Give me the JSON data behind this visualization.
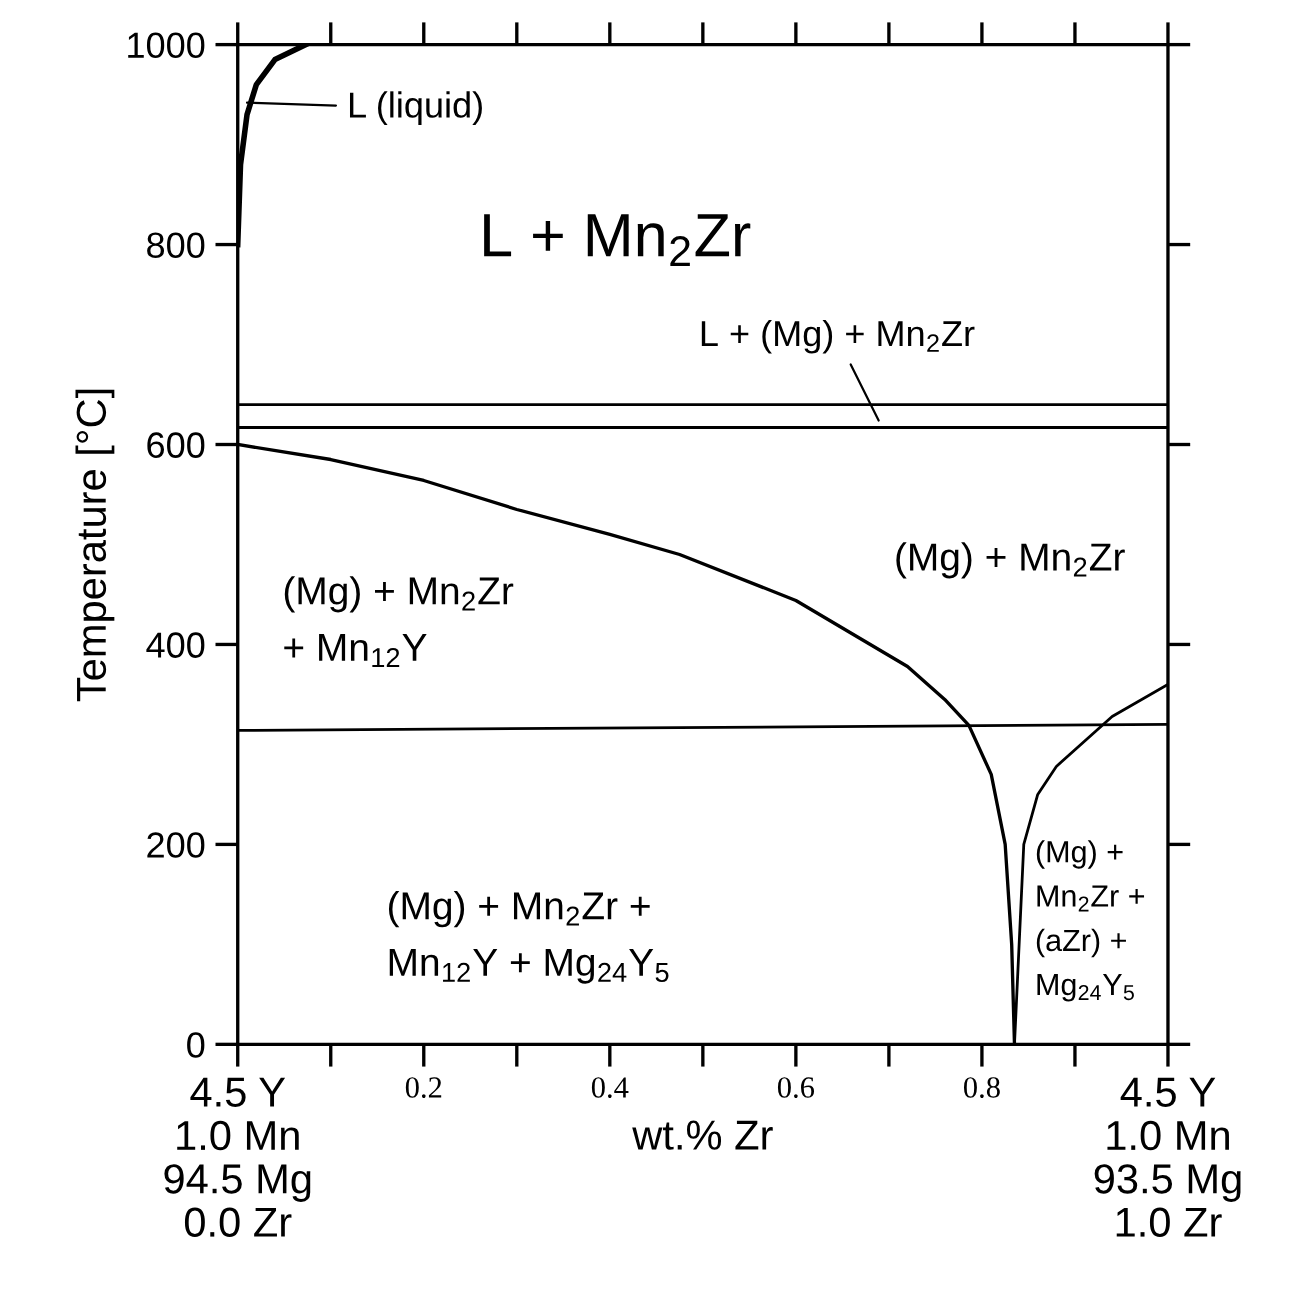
{
  "chart_data": {
    "type": "line",
    "xlabel": "wt.% Zr",
    "ylabel": "Temperature [°C]",
    "xlim": [
      0,
      1
    ],
    "ylim": [
      0,
      1000
    ],
    "xticks": [
      {
        "value": 0,
        "label": "4.5 Y\n1.0 Mn\n94.5 Mg\n0.0 Zr"
      },
      {
        "value": 0.1,
        "label": null
      },
      0.2,
      {
        "value": 0.3,
        "label": null
      },
      0.4,
      {
        "value": 0.5,
        "label": null
      },
      0.6,
      {
        "value": 0.7,
        "label": null
      },
      0.8,
      {
        "value": 0.9,
        "label": null
      },
      {
        "value": 1,
        "label": "4.5 Y\n1.0 Mn\n93.5 Mg\n1.0 Zr"
      }
    ],
    "yticks": [
      0,
      200,
      400,
      600,
      800,
      1000
    ],
    "grid": false,
    "legend": false,
    "marker": "none",
    "line_style": "solid",
    "series": [
      {
        "color": "#000000",
        "x": [
          0,
          0.003,
          0.01,
          0.02,
          0.04,
          0.073
        ],
        "values": [
          800,
          880,
          930,
          960,
          985,
          1000
        ]
      },
      {
        "color": "#000000",
        "x": [
          0,
          1
        ],
        "values": [
          640,
          640
        ]
      },
      {
        "color": "#000000",
        "x": [
          0,
          1
        ],
        "values": [
          617,
          617
        ]
      },
      {
        "color": "#000000",
        "x": [
          0,
          0.1,
          0.2,
          0.3,
          0.4,
          0.475,
          0.6,
          0.72,
          0.76,
          0.786,
          0.81,
          0.825,
          0.832,
          0.835
        ],
        "values": [
          600,
          585,
          564,
          535,
          510,
          490,
          444,
          378,
          345,
          319,
          270,
          200,
          100,
          0
        ]
      },
      {
        "color": "#000000",
        "x": [
          0,
          1
        ],
        "values": [
          314,
          320
        ]
      },
      {
        "color": "#000000",
        "x": [
          0.835,
          0.84,
          0.845,
          0.86,
          0.88,
          0.94,
          1
        ],
        "values": [
          0,
          100,
          200,
          250,
          278,
          328,
          360
        ]
      }
    ],
    "annotations": [
      {
        "text": "L (liquid)",
        "x": 0.01,
        "y": 942
      },
      "L + Mn$_{2}$Zr",
      {
        "text": "L + (Mg) + Mn$_{2}$Zr",
        "x": 0.689,
        "y": 624
      },
      "(Mg) + Mn$_{2}$Zr",
      "(Mg) + Mn$_{2}$Zr\n+ Mn$_{12}$Y",
      "(Mg) + Mn$_{2}$Zr +\nMn$_{12}$Y + Mg$_{24}$Y$_{5}$",
      "(Mg) +\nMn$_{2}$Zr +\n(aZr) +\nMg$_{24}$Y$_{5}$"
    ]
  }
}
